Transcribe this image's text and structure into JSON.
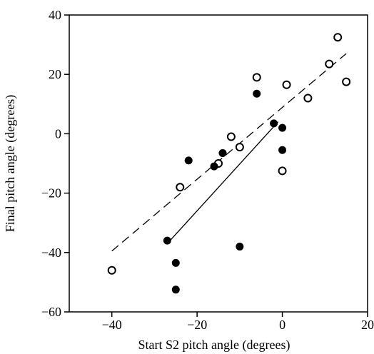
{
  "chart_data": {
    "type": "scatter",
    "title": "",
    "xlabel": "Start S2 pitch angle (degrees)",
    "ylabel": "Final pitch angle (degrees)",
    "xlim": [
      -50,
      20
    ],
    "ylim": [
      -60,
      40
    ],
    "x_ticks": [
      -40,
      -20,
      0,
      20
    ],
    "y_ticks": [
      -60,
      -40,
      -20,
      0,
      20,
      40
    ],
    "x_tick_labels": [
      "−40",
      "−20",
      "0",
      "20"
    ],
    "y_tick_labels": [
      "−60",
      "−40",
      "−20",
      "0",
      "20",
      "40"
    ],
    "grid": false,
    "legend": "none",
    "series": [
      {
        "marker": "open-circle",
        "color": "#000000",
        "points": [
          {
            "x": -40,
            "y": -46
          },
          {
            "x": -24,
            "y": -18
          },
          {
            "x": -15,
            "y": -10
          },
          {
            "x": -12,
            "y": -1
          },
          {
            "x": -10,
            "y": -4.5
          },
          {
            "x": -6,
            "y": 19
          },
          {
            "x": 0,
            "y": -12.5
          },
          {
            "x": 1,
            "y": 16.5
          },
          {
            "x": 6,
            "y": 12
          },
          {
            "x": 11,
            "y": 23.5
          },
          {
            "x": 13,
            "y": 32.5
          },
          {
            "x": 15,
            "y": 17.5
          }
        ],
        "fit": {
          "style": "dashed",
          "x": [
            -40,
            15
          ],
          "y": [
            -39.5,
            27
          ]
        }
      },
      {
        "marker": "filled-circle",
        "color": "#000000",
        "points": [
          {
            "x": -27,
            "y": -36
          },
          {
            "x": -25,
            "y": -43.5
          },
          {
            "x": -25,
            "y": -52.5
          },
          {
            "x": -22,
            "y": -9
          },
          {
            "x": -16,
            "y": -11
          },
          {
            "x": -14,
            "y": -6.5
          },
          {
            "x": -10,
            "y": -38
          },
          {
            "x": -6,
            "y": 13.5
          },
          {
            "x": -2,
            "y": 3.5
          },
          {
            "x": 0,
            "y": 2
          },
          {
            "x": 0,
            "y": -5.5
          }
        ],
        "fit": {
          "style": "solid",
          "x": [
            -27,
            -1
          ],
          "y": [
            -37,
            4
          ]
        }
      }
    ]
  }
}
